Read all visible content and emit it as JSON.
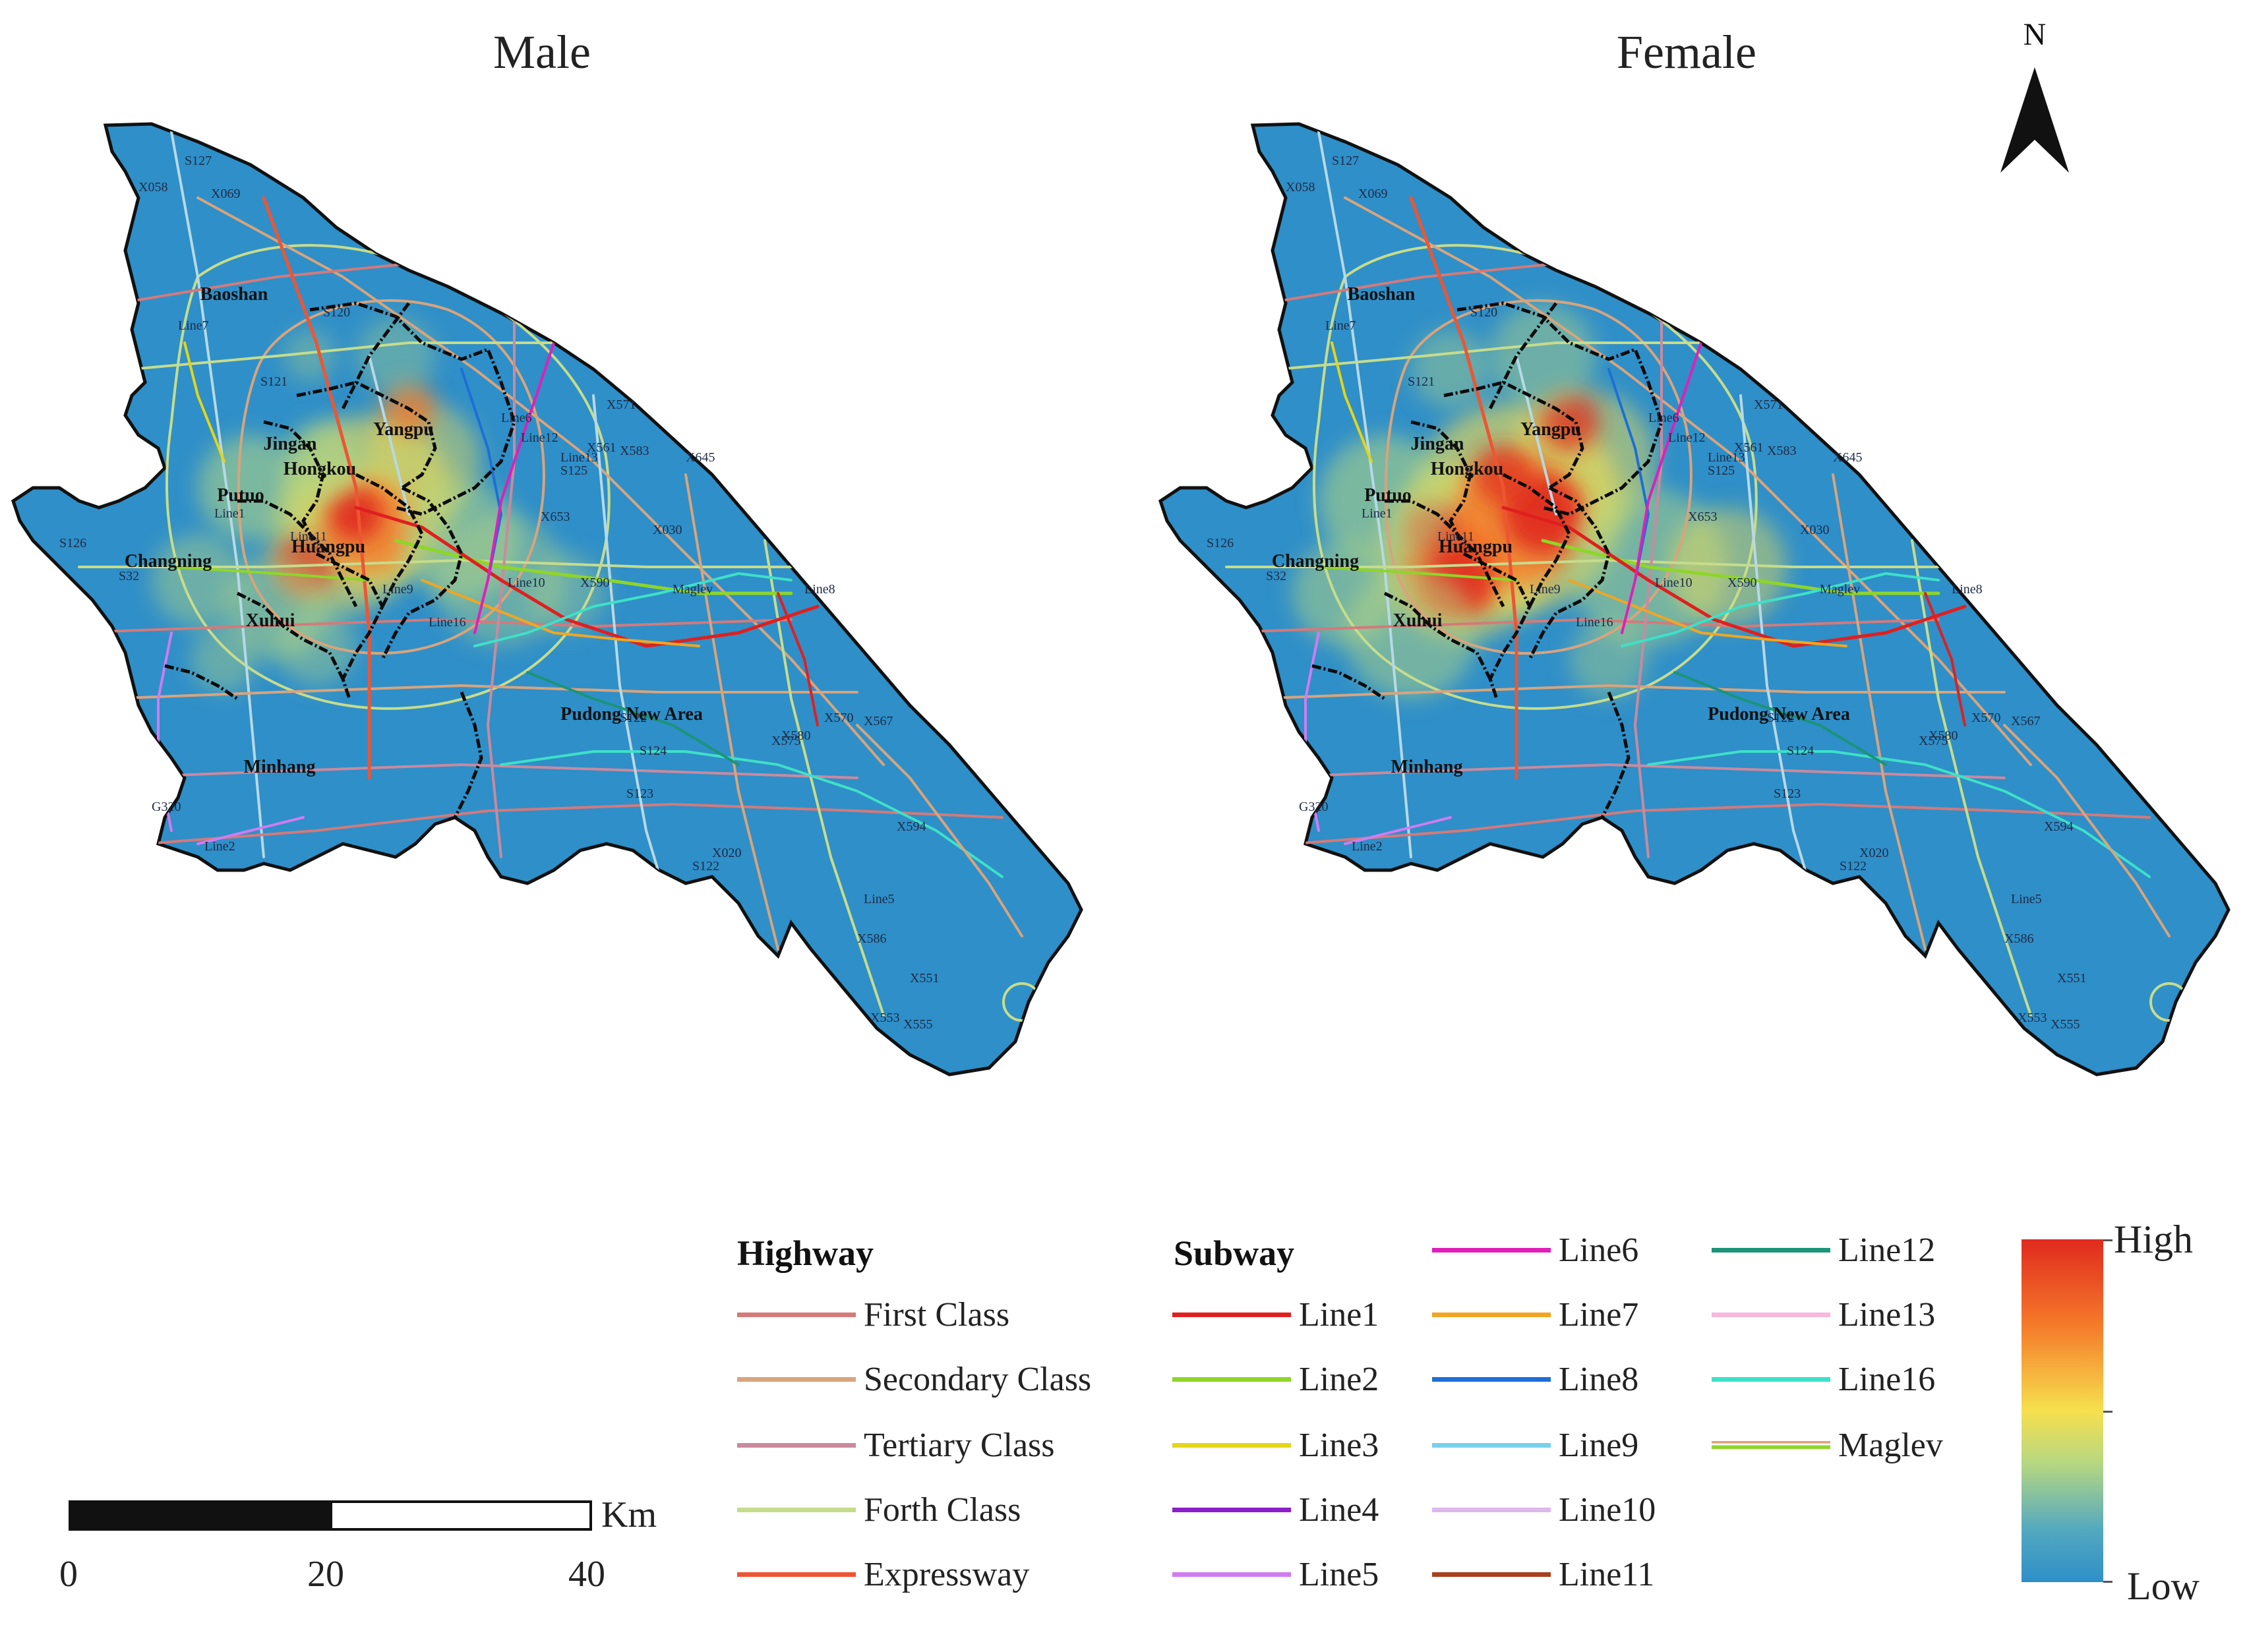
{
  "panels": [
    {
      "id": "male",
      "title": "Male"
    },
    {
      "id": "female",
      "title": "Female"
    }
  ],
  "north_arrow": {
    "label": "N"
  },
  "districts": [
    {
      "key": "baoshan",
      "name": "Baoshan"
    },
    {
      "key": "yangpu",
      "name": "Yangpu"
    },
    {
      "key": "jingan",
      "name": "Jingan"
    },
    {
      "key": "hongkou",
      "name": "Hongkou"
    },
    {
      "key": "putuo",
      "name": "Putuo"
    },
    {
      "key": "huangpu",
      "name": "Huangpu"
    },
    {
      "key": "changning",
      "name": "Changning"
    },
    {
      "key": "xuhui",
      "name": "Xuhui"
    },
    {
      "key": "pudong",
      "name": "Pudong New Area"
    },
    {
      "key": "minhang",
      "name": "Minhang"
    }
  ],
  "road_labels": [
    "S127",
    "X058",
    "X069",
    "S120",
    "S121",
    "Line7",
    "Line6",
    "Line12",
    "Line13",
    "Line1",
    "Line11",
    "Line16",
    "Line5",
    "Line2",
    "Line8",
    "Line9",
    "Line10",
    "S125",
    "S126",
    "S32",
    "S122",
    "S123",
    "S124",
    "S122",
    "X020",
    "X571",
    "X561",
    "X583",
    "X645",
    "X030",
    "X653",
    "X590",
    "X575",
    "X580",
    "X570",
    "X567",
    "X594",
    "X551",
    "X553",
    "X555",
    "X586",
    "G320",
    "Maglev"
  ],
  "legend": {
    "highway_title": "Highway",
    "subway_title": "Subway",
    "highway": [
      {
        "label": "First Class",
        "color": "#d47a7a"
      },
      {
        "label": "Secondary Class",
        "color": "#d8a47c"
      },
      {
        "label": "Tertiary Class",
        "color": "#c98a9e"
      },
      {
        "label": "Forth Class",
        "color": "#c6dc8c"
      },
      {
        "label": "Expressway",
        "color": "#ee5533"
      }
    ],
    "subway_col1": [
      {
        "label": "Line1",
        "color": "#e01f1f"
      },
      {
        "label": "Line2",
        "color": "#8ed628"
      },
      {
        "label": "Line3",
        "color": "#e3d51a"
      },
      {
        "label": "Line4",
        "color": "#8c1fc9"
      },
      {
        "label": "Line5",
        "color": "#cf7cf0"
      }
    ],
    "subway_col2": [
      {
        "label": "Line6",
        "color": "#e01fb8"
      },
      {
        "label": "Line7",
        "color": "#f0a623"
      },
      {
        "label": "Line8",
        "color": "#1d6fd6"
      },
      {
        "label": "Line9",
        "color": "#78d0ea"
      },
      {
        "label": "Line10",
        "color": "#dcb8ec"
      },
      {
        "label": "Line11",
        "color": "#a8401e"
      }
    ],
    "subway_col3": [
      {
        "label": "Line12",
        "color": "#1b9478"
      },
      {
        "label": "Line13",
        "color": "#f6b8dc"
      },
      {
        "label": "Line16",
        "color": "#3ee0c8"
      },
      {
        "label": "Maglev",
        "color": "#e6a070"
      }
    ]
  },
  "scale_bar": {
    "unit": "Km",
    "ticks": [
      "0",
      "20",
      "40"
    ]
  },
  "color_ramp": {
    "high": "High",
    "low": "Low",
    "colors": [
      "#e02a1e",
      "#f57a2a",
      "#f6e04e",
      "#b8d880",
      "#52a8c0",
      "#2f8fc8"
    ]
  },
  "map_colors": {
    "land": "#2f8fc8",
    "boundary": "#111111",
    "central_boundary": "#0b0b0b"
  }
}
